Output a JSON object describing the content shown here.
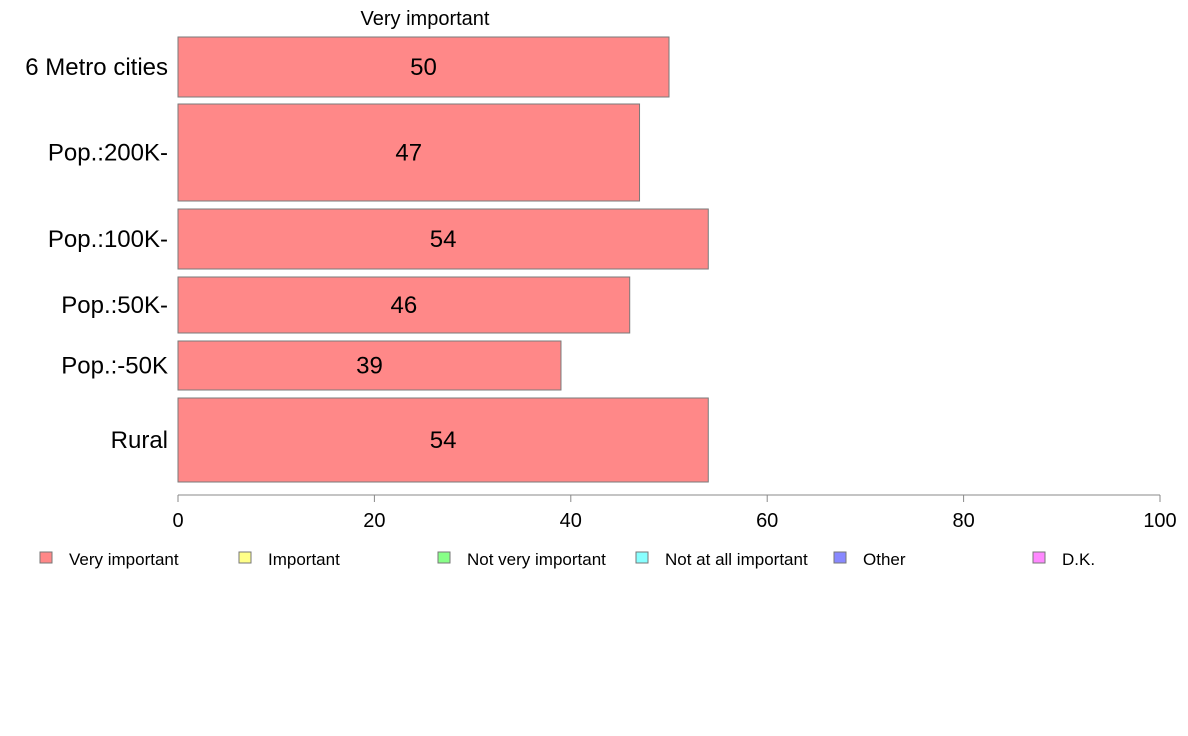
{
  "chart_data": {
    "type": "bar",
    "orientation": "horizontal",
    "title": "Very important",
    "categories": [
      "6 Metro cities",
      "Pop.:200K-",
      "Pop.:100K-",
      "Pop.:50K-",
      "Pop.:-50K",
      "Rural"
    ],
    "series": [
      {
        "name": "Very important",
        "values": [
          50,
          47,
          54,
          46,
          39,
          54
        ],
        "color": "#ff8888"
      }
    ],
    "xlim": [
      0,
      100
    ],
    "xticks": [
      0,
      20,
      40,
      60,
      80,
      100
    ],
    "xtick_labels": [
      "0",
      "20",
      "40",
      "60",
      "80",
      "100"
    ],
    "grid": false,
    "legend": {
      "placement": "bottom",
      "items": [
        {
          "label": "Very important",
          "color": "#ff8888"
        },
        {
          "label": "Important",
          "color": "#ffff88"
        },
        {
          "label": "Not very important",
          "color": "#88ff88"
        },
        {
          "label": "Not at all important",
          "color": "#88ffff"
        },
        {
          "label": "Other",
          "color": "#8888ff"
        },
        {
          "label": "D.K.",
          "color": "#ff88ff"
        }
      ]
    }
  }
}
